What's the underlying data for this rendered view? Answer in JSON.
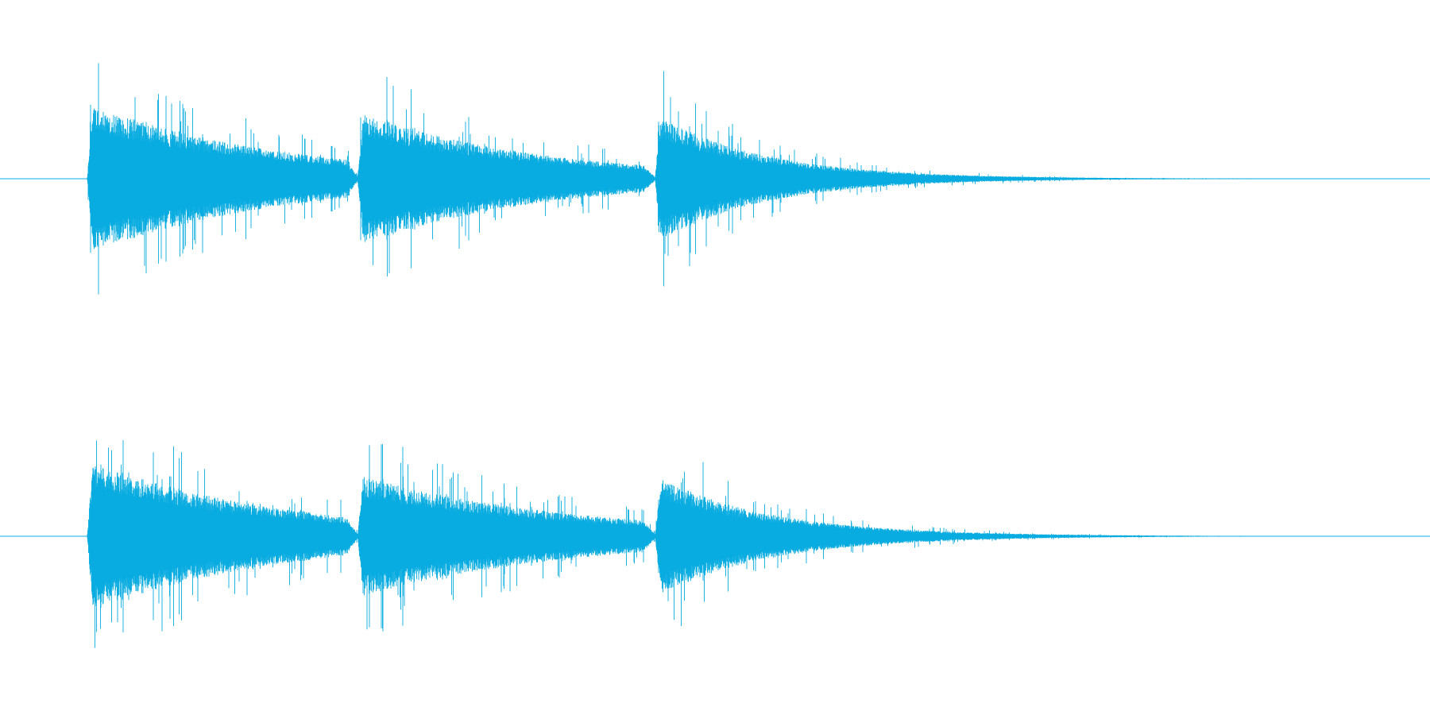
{
  "waveform": {
    "color": "#09ace0",
    "background": "#ffffff",
    "channels": [
      {
        "name": "",
        "notes": [
          {
            "onset": 0.061,
            "peak": 0.72,
            "decay": 1.8
          },
          {
            "onset": 0.25,
            "peak": 0.64,
            "decay": 1.9
          },
          {
            "onset": 0.458,
            "peak": 0.62,
            "decay": 3.2
          }
        ]
      },
      {
        "name": "",
        "notes": [
          {
            "onset": 0.061,
            "peak": 0.73,
            "decay": 1.8
          },
          {
            "onset": 0.25,
            "peak": 0.58,
            "decay": 1.6
          },
          {
            "onset": 0.458,
            "peak": 0.58,
            "decay": 3.0
          }
        ]
      }
    ],
    "end": 0.93
  }
}
